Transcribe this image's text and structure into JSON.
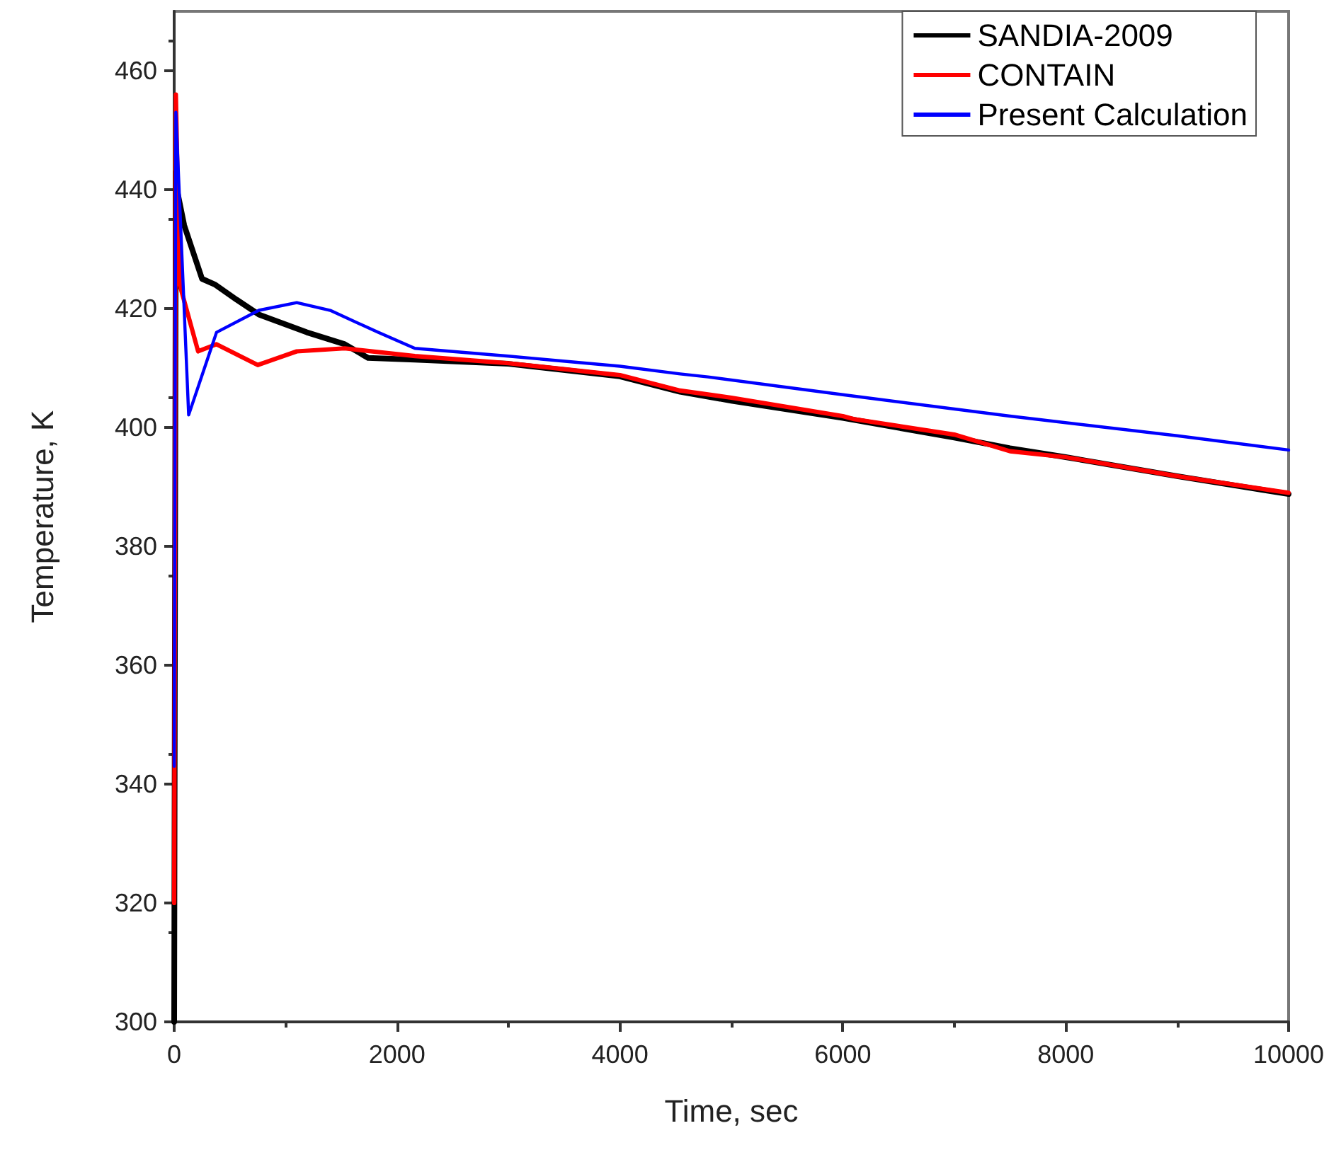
{
  "chart_data": {
    "type": "line",
    "xlabel": "Time, sec",
    "ylabel": "Temperature, K",
    "xlim": [
      0,
      10000
    ],
    "xticks": [
      0,
      2000,
      4000,
      6000,
      8000,
      10000
    ],
    "ylim": [
      300,
      470
    ],
    "yticks": [
      300,
      320,
      340,
      360,
      380,
      400,
      420,
      440,
      460
    ],
    "grid": false,
    "legend": "top right",
    "marker": "none",
    "line_style": "solid",
    "series": [
      {
        "name": "SANDIA-2009",
        "color": "#000000",
        "x": [
          0,
          15,
          25,
          90,
          250,
          370,
          560,
          760,
          1190,
          1530,
          1740,
          2160,
          3000,
          4000,
          4540,
          5000,
          6000,
          7000,
          7500,
          8000,
          9000,
          10000
        ],
        "values": [
          300,
          443,
          440,
          434,
          425,
          424,
          421.5,
          419,
          416,
          414,
          411.7,
          411.4,
          410.7,
          408.6,
          406,
          404.5,
          401.6,
          398.3,
          396.5,
          395,
          391.8,
          388.8
        ]
      },
      {
        "name": "CONTAIN",
        "color": "#ff0000",
        "x": [
          0,
          15,
          50,
          215,
          380,
          750,
          1100,
          1530,
          2160,
          3000,
          4000,
          4540,
          5000,
          6000,
          6100,
          7000,
          7500,
          8000,
          9000,
          10000
        ],
        "values": [
          320,
          456,
          424,
          412.8,
          414,
          410.5,
          412.8,
          413.3,
          412,
          410.8,
          408.8,
          406.2,
          405,
          401.9,
          401.4,
          398.8,
          396,
          395,
          391.8,
          389
        ]
      },
      {
        "name": "Present Calculation",
        "color": "#0000ff",
        "x": [
          0,
          15,
          130,
          380,
          760,
          1100,
          1400,
          1830,
          2160,
          3000,
          4000,
          4540,
          4790,
          6000,
          7500,
          9000,
          10000
        ],
        "values": [
          343,
          453,
          402.1,
          416,
          419.7,
          421,
          419.7,
          416,
          413.3,
          412,
          410.3,
          409,
          408.5,
          405.5,
          401.9,
          398.6,
          396.2
        ]
      }
    ]
  }
}
